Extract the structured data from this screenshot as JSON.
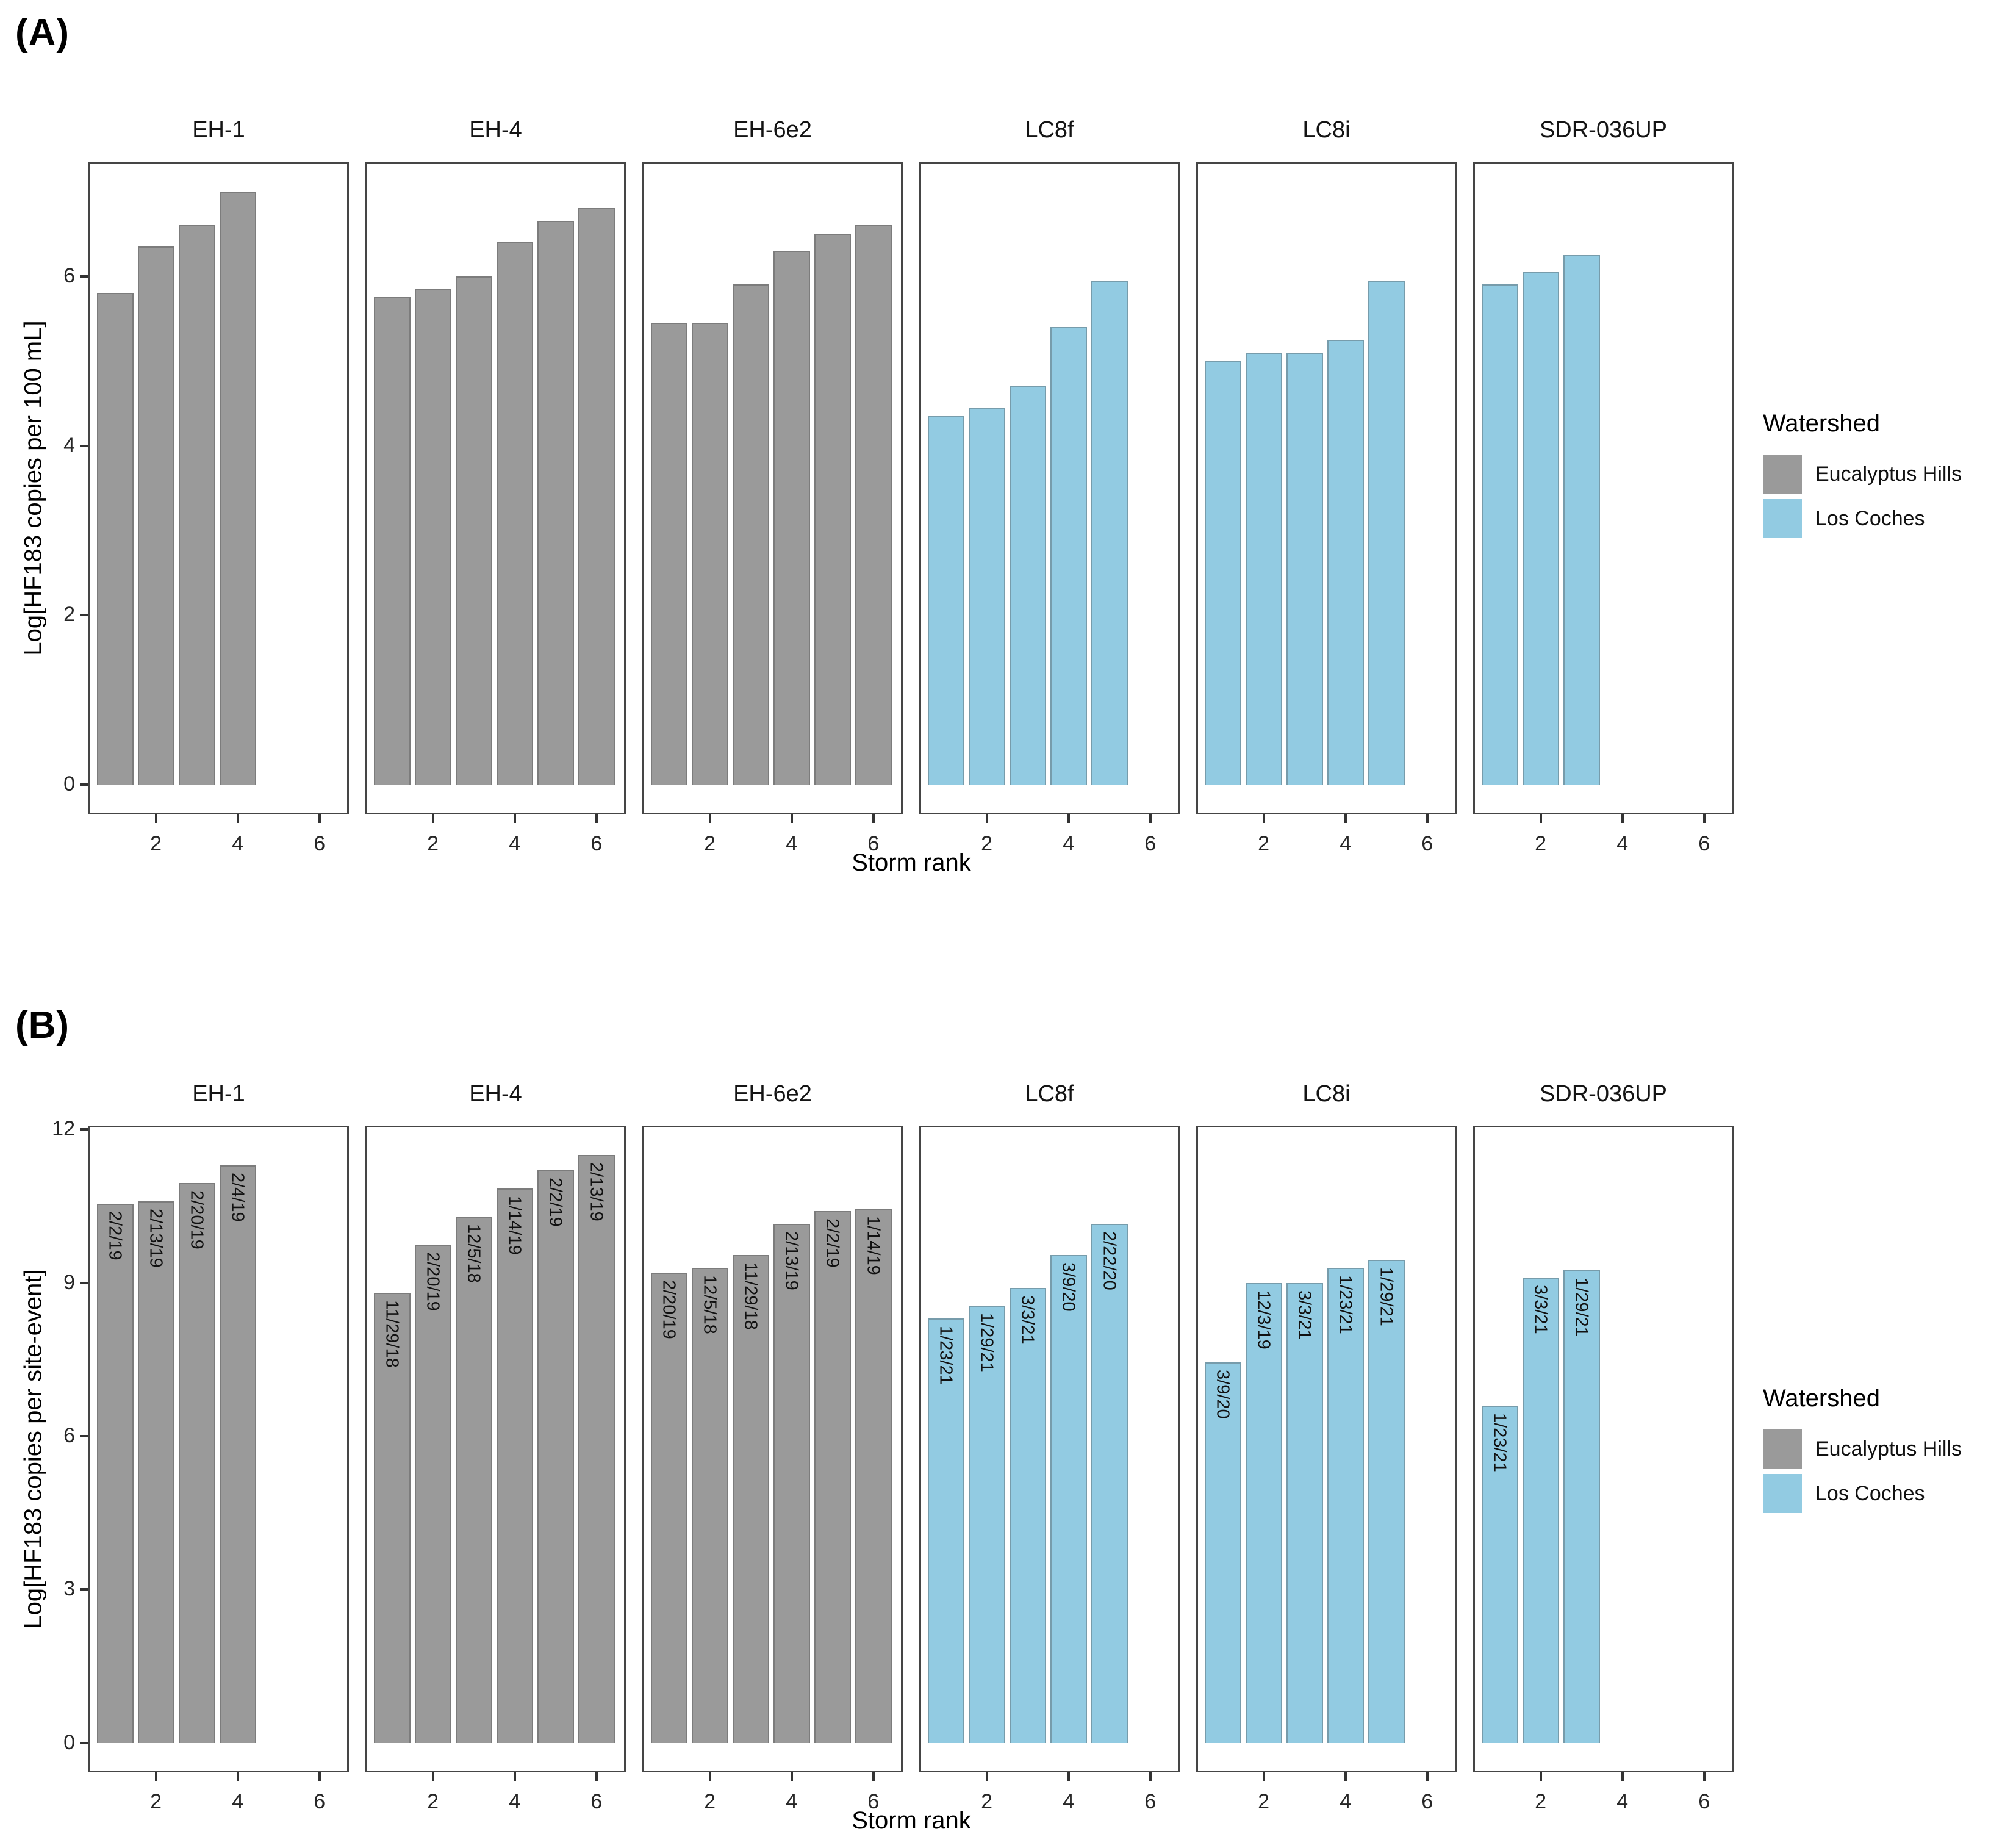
{
  "figure": {
    "panel_a": {
      "label": "(A)"
    },
    "panel_b": {
      "label": "(B)"
    },
    "legend": {
      "title": "Watershed",
      "items": [
        {
          "label": "Eucalyptus Hills",
          "color": "#9a9a9a"
        },
        {
          "label": "Los Coches",
          "color": "#92cbe2"
        }
      ]
    }
  },
  "chart_data": [
    {
      "type": "bar",
      "panel": "A",
      "ylabel": "Log[HF183 copies per 100 mL]",
      "xlabel": "Storm rank",
      "yticks": [
        0,
        2,
        4,
        6
      ],
      "xticks": [
        2,
        4,
        6
      ],
      "ylim": [
        0,
        7.0
      ],
      "xlim": [
        0.35,
        6.72
      ],
      "grid": false,
      "legend_position": "right",
      "facets": [
        {
          "site": "EH-1",
          "watershed": "Eucalyptus Hills",
          "ranks": [
            1,
            2,
            3,
            4
          ],
          "values": [
            5.8,
            6.35,
            6.6,
            7.0
          ]
        },
        {
          "site": "EH-4",
          "watershed": "Eucalyptus Hills",
          "ranks": [
            1,
            2,
            3,
            4,
            5,
            6
          ],
          "values": [
            5.75,
            5.85,
            6.0,
            6.4,
            6.65,
            6.8
          ]
        },
        {
          "site": "EH-6e2",
          "watershed": "Eucalyptus Hills",
          "ranks": [
            1,
            2,
            3,
            4,
            5,
            6
          ],
          "values": [
            5.45,
            5.45,
            5.9,
            6.3,
            6.5,
            6.6
          ]
        },
        {
          "site": "LC8f",
          "watershed": "Los Coches",
          "ranks": [
            1,
            2,
            3,
            4,
            5
          ],
          "values": [
            4.35,
            4.45,
            4.7,
            5.4,
            5.95
          ]
        },
        {
          "site": "LC8i",
          "watershed": "Los Coches",
          "ranks": [
            1,
            2,
            3,
            4,
            5
          ],
          "values": [
            5.0,
            5.1,
            5.1,
            5.25,
            5.95
          ]
        },
        {
          "site": "SDR-036UP",
          "watershed": "Los Coches",
          "ranks": [
            1,
            2,
            3
          ],
          "values": [
            5.9,
            6.05,
            6.25
          ]
        }
      ]
    },
    {
      "type": "bar",
      "panel": "B",
      "ylabel": "Log[HF183 copies per site-event]",
      "xlabel": "Storm rank",
      "yticks": [
        0,
        3,
        6,
        9,
        12
      ],
      "xticks": [
        2,
        4,
        6
      ],
      "ylim": [
        0,
        11.5
      ],
      "xlim": [
        0.35,
        6.72
      ],
      "grid": false,
      "legend_position": "right",
      "bar_label_meaning": "storm event date",
      "facets": [
        {
          "site": "EH-1",
          "watershed": "Eucalyptus Hills",
          "ranks": [
            1,
            2,
            3,
            4
          ],
          "values": [
            10.55,
            10.6,
            10.95,
            11.3
          ],
          "labels": [
            "2/2/19",
            "2/13/19",
            "2/20/19",
            "2/4/19"
          ]
        },
        {
          "site": "EH-4",
          "watershed": "Eucalyptus Hills",
          "ranks": [
            1,
            2,
            3,
            4,
            5,
            6
          ],
          "values": [
            8.8,
            9.75,
            10.3,
            10.85,
            11.2,
            11.5
          ],
          "labels": [
            "11/29/18",
            "2/20/19",
            "12/5/18",
            "1/14/19",
            "2/2/19",
            "2/13/19"
          ]
        },
        {
          "site": "EH-6e2",
          "watershed": "Eucalyptus Hills",
          "ranks": [
            1,
            2,
            3,
            4,
            5,
            6
          ],
          "values": [
            9.2,
            9.3,
            9.55,
            10.15,
            10.4,
            10.45
          ],
          "labels": [
            "2/20/19",
            "12/5/18",
            "11/29/18",
            "2/13/19",
            "2/2/19",
            "1/14/19"
          ]
        },
        {
          "site": "LC8f",
          "watershed": "Los Coches",
          "ranks": [
            1,
            2,
            3,
            4,
            5
          ],
          "values": [
            8.3,
            8.55,
            8.9,
            9.55,
            10.15
          ],
          "labels": [
            "1/23/21",
            "1/29/21",
            "3/3/21",
            "3/9/20",
            "2/22/20"
          ]
        },
        {
          "site": "LC8i",
          "watershed": "Los Coches",
          "ranks": [
            1,
            2,
            3,
            4,
            5
          ],
          "values": [
            7.45,
            9.0,
            9.0,
            9.3,
            9.45
          ],
          "labels": [
            "3/9/20",
            "12/3/19",
            "3/3/21",
            "1/23/21",
            "1/29/21"
          ]
        },
        {
          "site": "SDR-036UP",
          "watershed": "Los Coches",
          "ranks": [
            1,
            2,
            3
          ],
          "values": [
            6.6,
            9.1,
            9.25
          ],
          "labels": [
            "1/23/21",
            "3/3/21",
            "1/29/21"
          ]
        }
      ]
    }
  ]
}
